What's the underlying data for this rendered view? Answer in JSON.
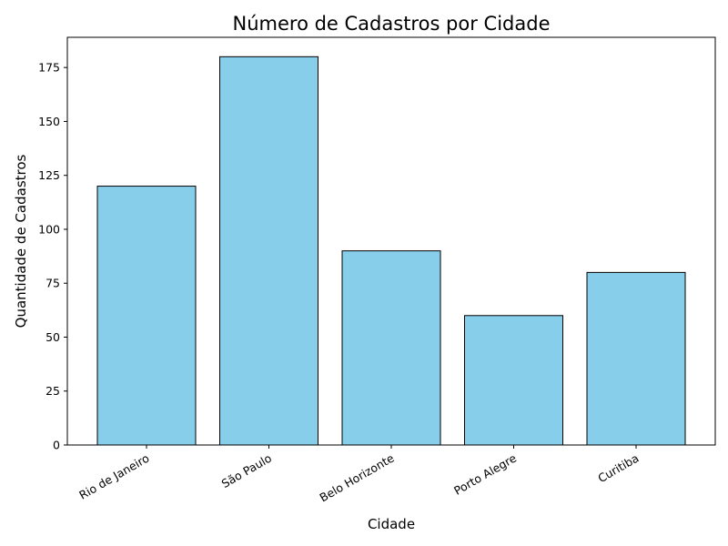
{
  "chart_data": {
    "type": "bar",
    "title": "Número de Cadastros por Cidade",
    "xlabel": "Cidade",
    "ylabel": "Quantidade de Cadastros",
    "categories": [
      "Rio de Janeiro",
      "São Paulo",
      "Belo Horizonte",
      "Porto Alegre",
      "Curitiba"
    ],
    "values": [
      120,
      180,
      90,
      60,
      80
    ],
    "ylim": [
      0,
      189
    ],
    "yticks": [
      0,
      25,
      50,
      75,
      100,
      125,
      150,
      175
    ],
    "bar_color": "#87CEEB",
    "bar_edge_color": "#000000",
    "grid": false,
    "legend": "none"
  }
}
